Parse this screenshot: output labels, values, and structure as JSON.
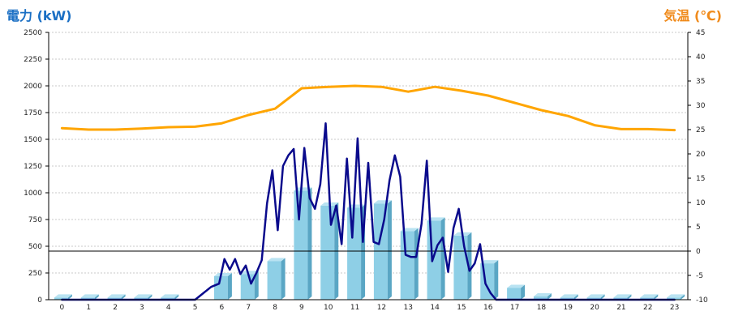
{
  "colors": {
    "left_title": "#1a6fc4",
    "right_title": "#f08a1a",
    "bar_front": "#8ecfe6",
    "bar_side": "#5aa6c4",
    "bar_top": "#b9e3f2",
    "power_line": "#0a0a8c",
    "temp_line": "#ffa500",
    "grid": "#c8c8c8"
  },
  "chart_data": {
    "type": "bar",
    "categories": [
      "0",
      "1",
      "2",
      "3",
      "4",
      "5",
      "6",
      "7",
      "8",
      "9",
      "10",
      "11",
      "12",
      "13",
      "14",
      "15",
      "16",
      "17",
      "18",
      "19",
      "20",
      "21",
      "22",
      "23"
    ],
    "y_left": {
      "label": "電力 (kW)",
      "ylim": [
        0,
        2500
      ],
      "ticks": [
        0,
        250,
        500,
        750,
        1000,
        1250,
        1500,
        1750,
        2000,
        2250,
        2500
      ]
    },
    "y_right": {
      "label": "気温 (℃)",
      "ylim": [
        -10,
        45
      ],
      "ticks": [
        -10,
        -5,
        0,
        5,
        10,
        15,
        20,
        25,
        30,
        35,
        40,
        45
      ]
    },
    "grid": true,
    "reference_line_right_axis": 0,
    "series": [
      {
        "kind": "bar",
        "axis": "left",
        "values": [
          20,
          20,
          20,
          20,
          20,
          0,
          220,
          240,
          360,
          1020,
          880,
          860,
          900,
          640,
          740,
          600,
          340,
          110,
          30,
          20,
          20,
          20,
          20,
          20
        ]
      },
      {
        "kind": "line",
        "axis": "left",
        "x": [
          0,
          1,
          2,
          3,
          4,
          5,
          5.3,
          5.6,
          5.9,
          6.1,
          6.3,
          6.5,
          6.7,
          6.9,
          7.1,
          7.3,
          7.5,
          7.7,
          7.9,
          8.1,
          8.3,
          8.5,
          8.7,
          8.9,
          9.1,
          9.3,
          9.5,
          9.7,
          9.9,
          10.1,
          10.3,
          10.5,
          10.7,
          10.9,
          11.1,
          11.3,
          11.5,
          11.7,
          11.9,
          12.1,
          12.3,
          12.5,
          12.7,
          12.9,
          13.1,
          13.3,
          13.5,
          13.7,
          13.9,
          14.1,
          14.3,
          14.5,
          14.7,
          14.9,
          15.1,
          15.3,
          15.5,
          15.7,
          15.9,
          16.1,
          16.3,
          16.5,
          16.7,
          16.9,
          17.1,
          17.3,
          17.5,
          17.7,
          18,
          19,
          20,
          21,
          22,
          23
        ],
        "values": [
          0,
          0,
          0,
          0,
          0,
          0,
          60,
          120,
          150,
          380,
          280,
          380,
          240,
          320,
          150,
          250,
          370,
          900,
          1210,
          650,
          1250,
          1350,
          1410,
          750,
          1420,
          950,
          850,
          1080,
          1650,
          700,
          880,
          520,
          1320,
          580,
          1510,
          540,
          1280,
          540,
          520,
          750,
          1120,
          1350,
          1150,
          420,
          400,
          400,
          710,
          1300,
          360,
          510,
          580,
          260,
          670,
          850,
          500,
          270,
          340,
          520,
          150,
          60,
          0,
          0,
          0,
          0,
          0,
          0,
          0,
          0,
          0,
          0,
          0,
          0,
          0,
          0
        ]
      },
      {
        "kind": "line",
        "axis": "right",
        "x": [
          0,
          1,
          2,
          3,
          4,
          5,
          6,
          7,
          8,
          9,
          10,
          11,
          12,
          13,
          14,
          15,
          16,
          17,
          18,
          19,
          20,
          21,
          22,
          23
        ],
        "values": [
          25.3,
          25.0,
          25.0,
          25.2,
          25.5,
          25.6,
          26.3,
          28.0,
          29.3,
          33.5,
          33.8,
          34.0,
          33.8,
          32.8,
          33.8,
          33.0,
          32.0,
          30.5,
          29.0,
          27.8,
          25.9,
          25.1,
          25.1,
          24.9
        ]
      }
    ]
  }
}
